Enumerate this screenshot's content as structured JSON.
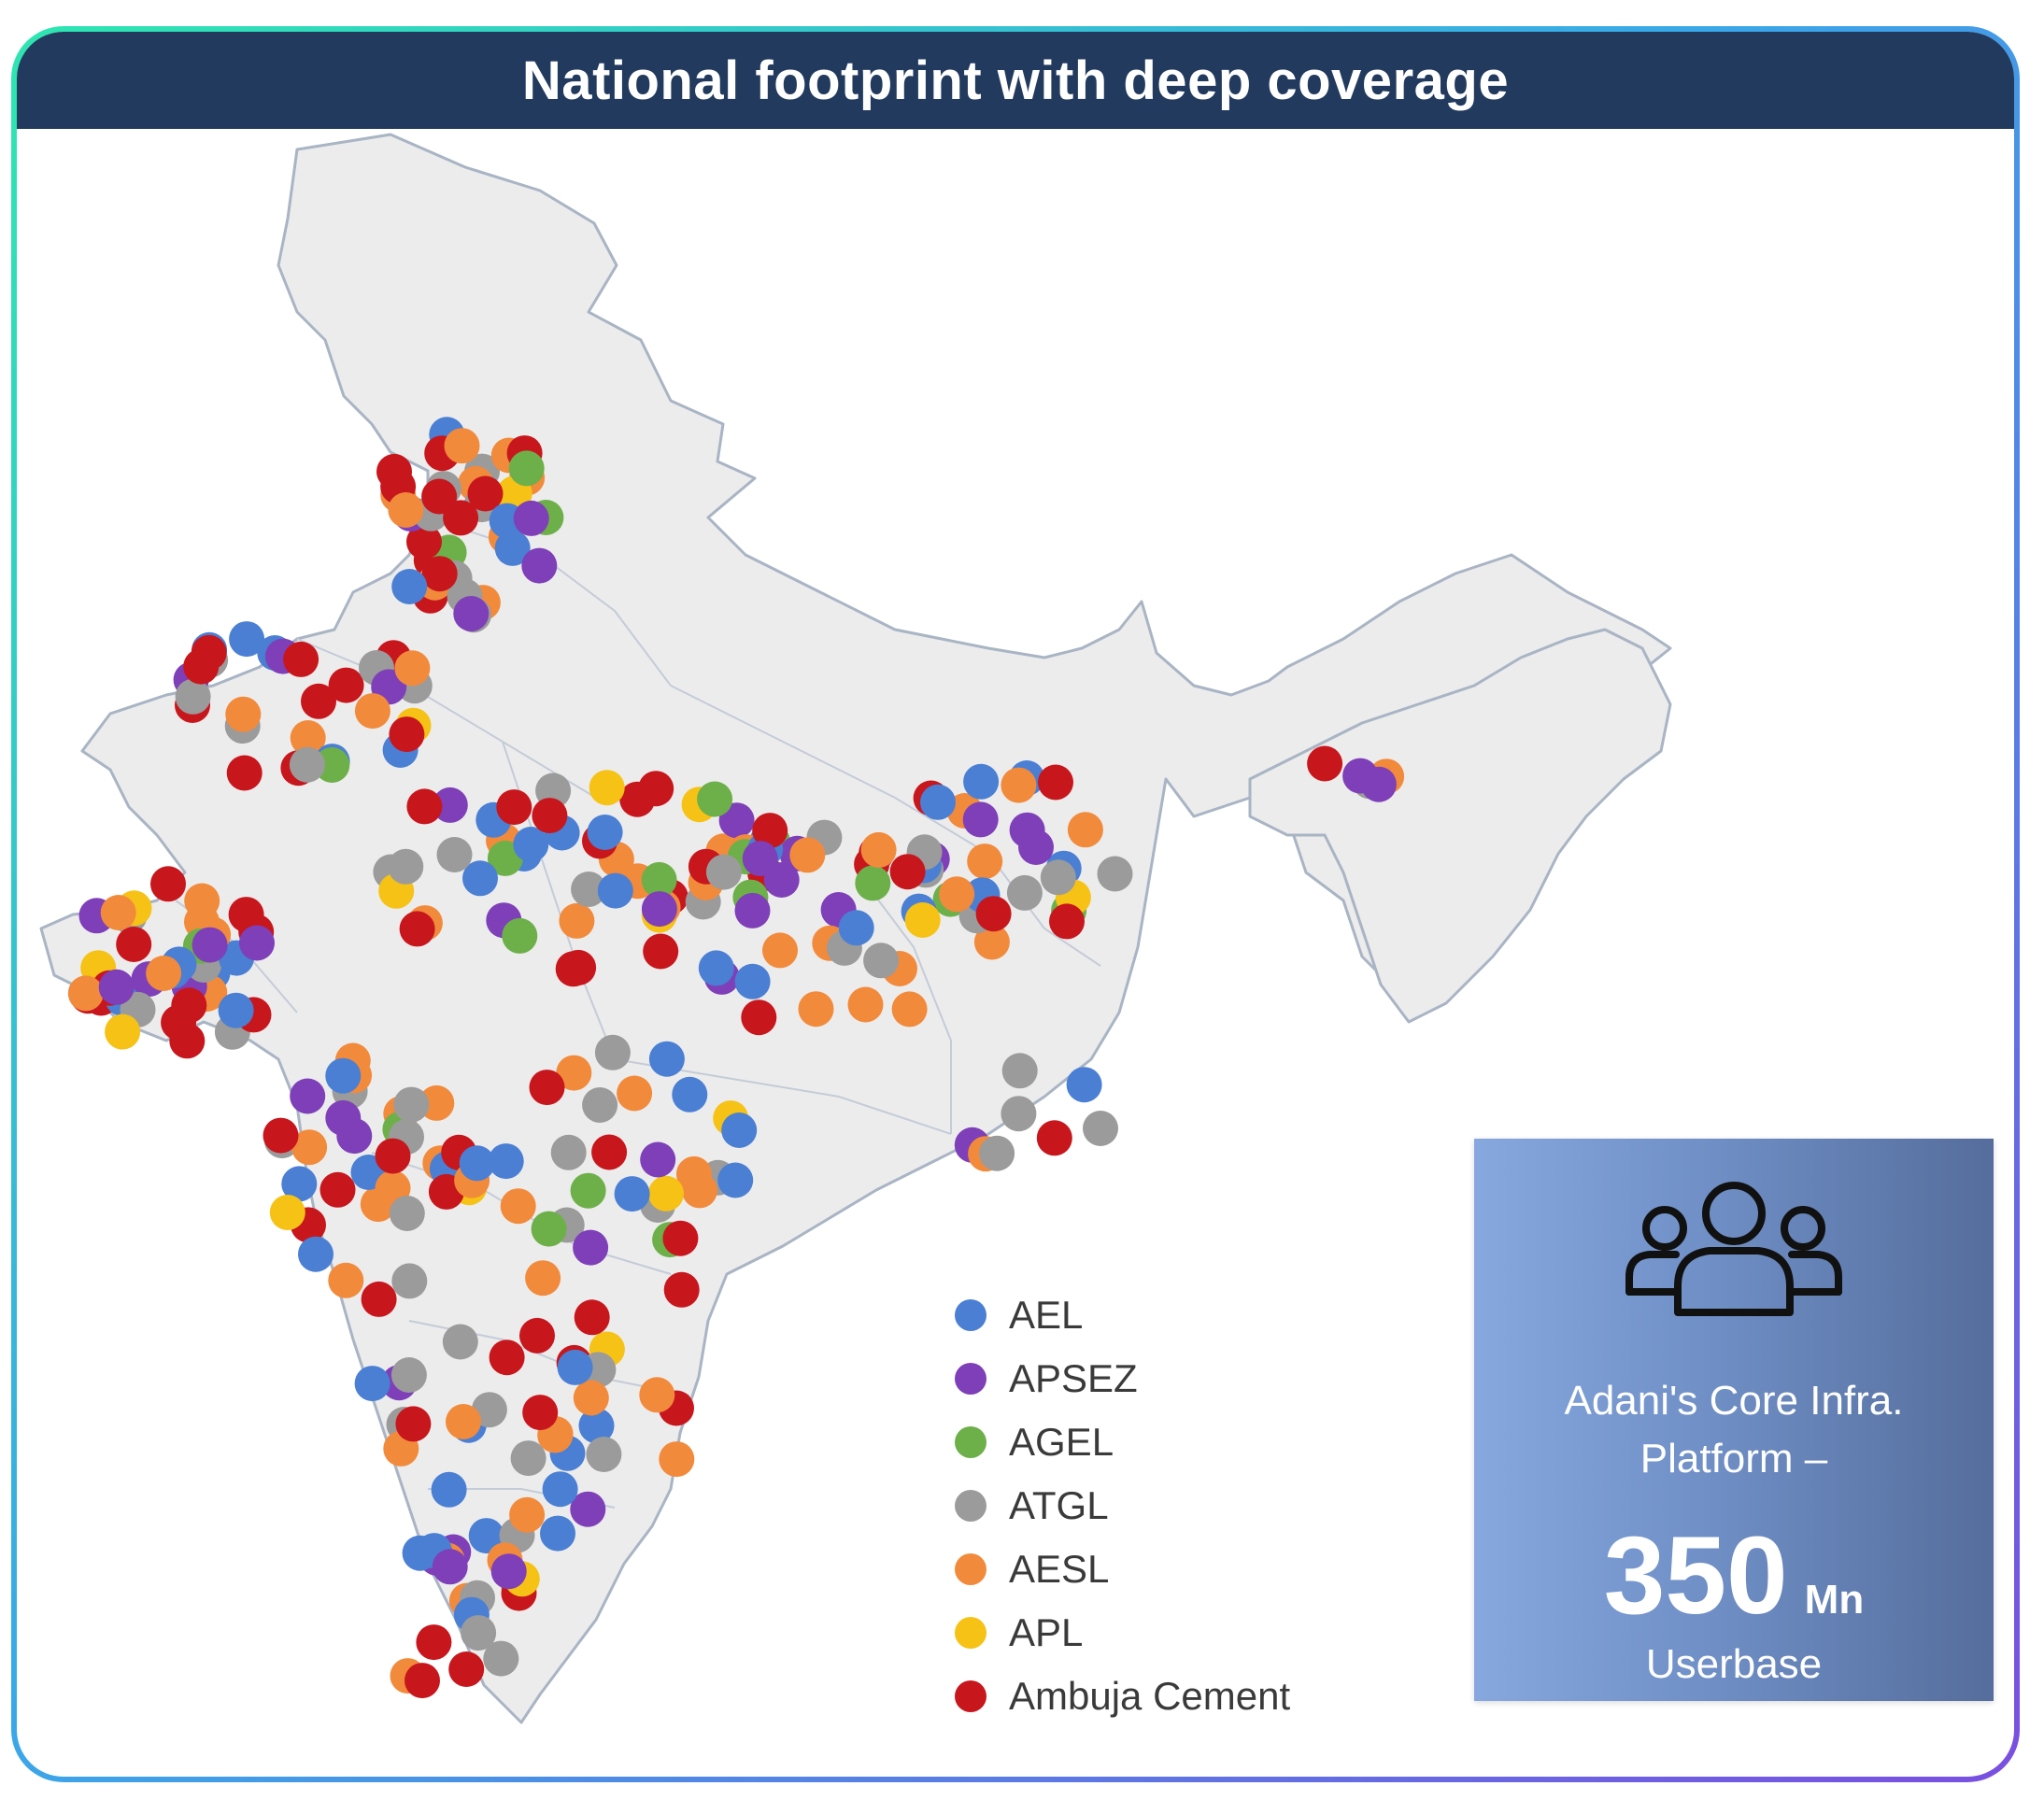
{
  "header": {
    "title": "National footprint with deep coverage"
  },
  "legend": [
    {
      "label": "AEL",
      "color": "#4a7fd4"
    },
    {
      "label": "APSEZ",
      "color": "#7e3fb8"
    },
    {
      "label": "AGEL",
      "color": "#6db04a"
    },
    {
      "label": "ATGL",
      "color": "#9b9b9b"
    },
    {
      "label": "AESL",
      "color": "#f28a3c"
    },
    {
      "label": "APL",
      "color": "#f6c216"
    },
    {
      "label": "Ambuja Cement",
      "color": "#c8161d"
    }
  ],
  "info_box": {
    "icon": "users-icon",
    "line1": "Adani's Core Infra.",
    "line2": "Platform –",
    "number": "350",
    "unit": "Mn",
    "line3": "Userbase"
  },
  "map": {
    "region": "India",
    "fill_color": "#ececec",
    "border_color": "#a9b4c4"
  }
}
